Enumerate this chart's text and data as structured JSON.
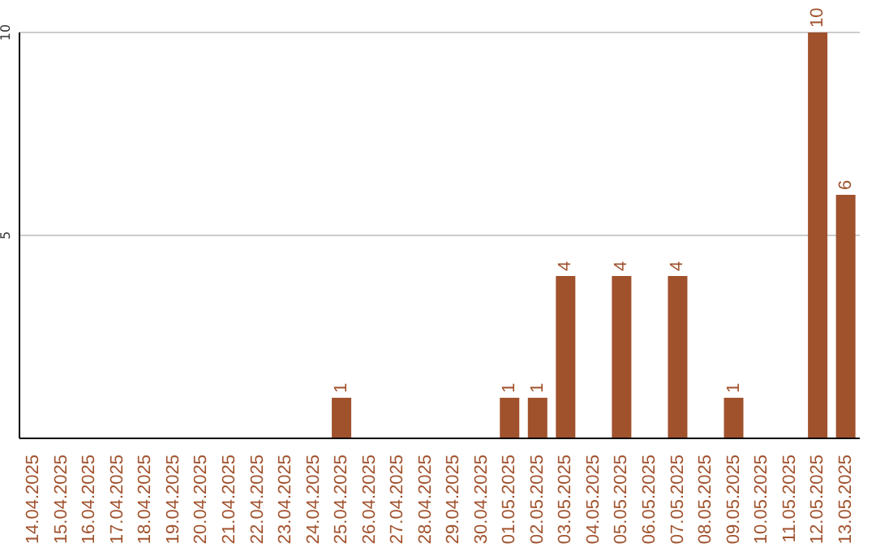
{
  "chart_data": {
    "type": "bar",
    "categories": [
      "14.04.2025",
      "15.04.2025",
      "16.04.2025",
      "17.04.2025",
      "18.04.2025",
      "19.04.2025",
      "20.04.2025",
      "21.04.2025",
      "22.04.2025",
      "23.04.2025",
      "24.04.2025",
      "25.04.2025",
      "26.04.2025",
      "27.04.2025",
      "28.04.2025",
      "29.04.2025",
      "30.04.2025",
      "01.05.2025",
      "02.05.2025",
      "03.05.2025",
      "04.05.2025",
      "05.05.2025",
      "06.05.2025",
      "07.05.2025",
      "08.05.2025",
      "09.05.2025",
      "10.05.2025",
      "11.05.2025",
      "12.05.2025",
      "13.05.2025"
    ],
    "values": [
      0,
      0,
      0,
      0,
      0,
      0,
      0,
      0,
      0,
      0,
      0,
      1,
      0,
      0,
      0,
      0,
      0,
      1,
      1,
      4,
      0,
      4,
      0,
      4,
      0,
      1,
      0,
      0,
      10,
      6
    ],
    "value_labels": [
      null,
      null,
      null,
      null,
      null,
      null,
      null,
      null,
      null,
      null,
      null,
      "1",
      null,
      null,
      null,
      null,
      null,
      "1",
      "1",
      "4",
      null,
      "4",
      null,
      "4",
      null,
      "1",
      null,
      null,
      "10",
      "6"
    ],
    "color": "#a0522d",
    "ylim": [
      0,
      10
    ],
    "yticks": [
      5,
      10
    ],
    "grid": "y"
  }
}
